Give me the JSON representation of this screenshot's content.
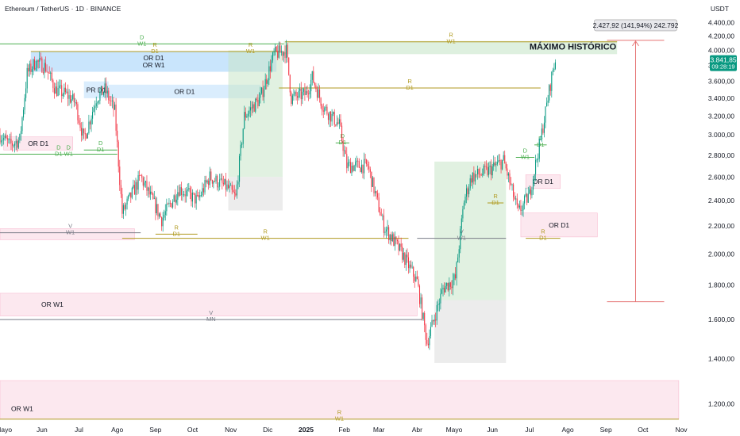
{
  "header": {
    "symbol": "Ethereum / TetherUS · 1D · BINANCE",
    "currency": "USDT"
  },
  "colors": {
    "up": "#089981",
    "down": "#f23645",
    "green_line": "#4caf50",
    "gold_line": "#b09a20",
    "grey_line": "#787b86",
    "red_measure": "#e57373",
    "price_badge": "#089981"
  },
  "chart_data": {
    "type": "candlestick",
    "symbol": "ETHUSDT",
    "timeframe": "1D",
    "exchange": "BINANCE",
    "x_range": [
      "2024-04-28",
      "2025-11-01"
    ],
    "y_range": [
      1130,
      4500
    ],
    "y_scale": "log",
    "y_ticks": [
      "1.200,00",
      "1.400,00",
      "1.600,00",
      "1.800,00",
      "2.000,00",
      "2.200,00",
      "2.400,00",
      "2.600,00",
      "2.800,00",
      "3.000,00",
      "3.200,00",
      "3.400,00",
      "3.600,00",
      "3.800,00",
      "4.000,00",
      "4.200,00",
      "4.400,00"
    ],
    "y_tick_values": [
      1200,
      1400,
      1600,
      1800,
      2000,
      2200,
      2400,
      2600,
      2800,
      3000,
      3200,
      3400,
      3600,
      3800,
      4000,
      4200,
      4400
    ],
    "x_ticks": [
      {
        "label": "Mayo",
        "date": "2024-05-01"
      },
      {
        "label": "Jun",
        "date": "2024-06-01"
      },
      {
        "label": "Jul",
        "date": "2024-07-01"
      },
      {
        "label": "Ago",
        "date": "2024-08-01"
      },
      {
        "label": "Sep",
        "date": "2024-09-01"
      },
      {
        "label": "Oct",
        "date": "2024-10-01"
      },
      {
        "label": "Nov",
        "date": "2024-11-01"
      },
      {
        "label": "Dic",
        "date": "2024-12-01"
      },
      {
        "label": "2025",
        "date": "2025-01-01"
      },
      {
        "label": "Feb",
        "date": "2025-02-01"
      },
      {
        "label": "Mar",
        "date": "2025-03-01"
      },
      {
        "label": "Abr",
        "date": "2025-04-01"
      },
      {
        "label": "Mayo",
        "date": "2025-05-01"
      },
      {
        "label": "Jun",
        "date": "2025-06-01"
      },
      {
        "label": "Jul",
        "date": "2025-07-01"
      },
      {
        "label": "Ago",
        "date": "2025-08-01"
      },
      {
        "label": "Sep",
        "date": "2025-09-01"
      },
      {
        "label": "Oct",
        "date": "2025-10-01"
      },
      {
        "label": "Nov",
        "date": "2025-11-01"
      }
    ],
    "price_path": [
      [
        "2024-04-28",
        3000
      ],
      [
        "2024-05-06",
        2900
      ],
      [
        "2024-05-14",
        2950
      ],
      [
        "2024-05-20",
        3700
      ],
      [
        "2024-05-27",
        3850
      ],
      [
        "2024-06-04",
        3780
      ],
      [
        "2024-06-12",
        3500
      ],
      [
        "2024-06-20",
        3450
      ],
      [
        "2024-06-28",
        3350
      ],
      [
        "2024-07-05",
        2950
      ],
      [
        "2024-07-15",
        3400
      ],
      [
        "2024-07-22",
        3500
      ],
      [
        "2024-07-30",
        3250
      ],
      [
        "2024-08-05",
        2300
      ],
      [
        "2024-08-20",
        2600
      ],
      [
        "2024-09-06",
        2250
      ],
      [
        "2024-09-20",
        2500
      ],
      [
        "2024-10-05",
        2400
      ],
      [
        "2024-10-15",
        2600
      ],
      [
        "2024-10-30",
        2500
      ],
      [
        "2024-11-05",
        2420
      ],
      [
        "2024-11-12",
        3200
      ],
      [
        "2024-11-25",
        3400
      ],
      [
        "2024-12-06",
        3950
      ],
      [
        "2024-12-16",
        4000
      ],
      [
        "2024-12-20",
        3400
      ],
      [
        "2025-01-01",
        3450
      ],
      [
        "2025-01-06",
        3650
      ],
      [
        "2025-01-15",
        3300
      ],
      [
        "2025-01-28",
        3100
      ],
      [
        "2025-02-03",
        2700
      ],
      [
        "2025-02-20",
        2700
      ],
      [
        "2025-03-05",
        2200
      ],
      [
        "2025-03-20",
        2000
      ],
      [
        "2025-04-01",
        1820
      ],
      [
        "2025-04-09",
        1480
      ],
      [
        "2025-04-22",
        1780
      ],
      [
        "2025-05-02",
        1840
      ],
      [
        "2025-05-09",
        2400
      ],
      [
        "2025-05-15",
        2600
      ],
      [
        "2025-05-28",
        2650
      ],
      [
        "2025-06-10",
        2750
      ],
      [
        "2025-06-22",
        2300
      ],
      [
        "2025-07-01",
        2450
      ],
      [
        "2025-07-10",
        2950
      ],
      [
        "2025-07-16",
        3400
      ],
      [
        "2025-07-20",
        3750
      ],
      [
        "2025-07-22",
        3841.85
      ]
    ],
    "last_price": "3.841,85",
    "countdown": "09:28:19",
    "measure": {
      "label": "2.427,92 (141,94%) 242.792",
      "from_price": 1700,
      "to_price": 4140,
      "x_date": "2025-09-25"
    },
    "annotations": [
      {
        "text": "MÁXIMO HISTÓRICO",
        "date": "2025-07-01",
        "price": 4000
      }
    ]
  },
  "zones": [
    {
      "label": "OR D1",
      "from": "2024-05-23",
      "to": "2024-12-08",
      "low": 3720,
      "high": 3980,
      "color": "blue"
    },
    {
      "label": "OR W1",
      "from": "2024-05-23",
      "to": "2024-12-08",
      "low": 3720,
      "high": 3980,
      "color": "blue"
    },
    {
      "label": "PR D1",
      "from": "2024-07-05",
      "to": "2024-07-25",
      "low": 3400,
      "high": 3600,
      "color": "blue"
    },
    {
      "label": "OR D1",
      "from": "2024-07-25",
      "to": "2024-11-25",
      "low": 3400,
      "high": 3560,
      "color": "blue"
    },
    {
      "label": "",
      "from": "2024-12-14",
      "to": "2025-09-10",
      "low": 3950,
      "high": 4130,
      "color": "green"
    },
    {
      "label": "OR D1",
      "from": "2024-05-01",
      "to": "2024-06-26",
      "low": 2850,
      "high": 2980,
      "color": "pink"
    },
    {
      "label": "",
      "from": "2024-04-28",
      "to": "2024-08-15",
      "low": 2100,
      "high": 2180,
      "color": "pink"
    },
    {
      "label": "OR W1",
      "from": "2024-04-28",
      "to": "2025-04-01",
      "low": 1620,
      "high": 1750,
      "color": "pink"
    },
    {
      "label": "OR W1",
      "from": "2024-04-28",
      "to": "2025-10-30",
      "low": 1140,
      "high": 1300,
      "color": "pink"
    },
    {
      "label": "OR D1",
      "from": "2025-06-28",
      "to": "2025-07-26",
      "low": 2500,
      "high": 2620,
      "color": "pink"
    },
    {
      "label": "OR D1",
      "from": "2025-06-24",
      "to": "2025-08-25",
      "low": 2120,
      "high": 2300,
      "color": "pink"
    },
    {
      "label": "",
      "from": "2024-10-30",
      "to": "2024-12-13",
      "low": 2600,
      "high": 4000,
      "color": "greenbox"
    },
    {
      "label": "",
      "from": "2024-10-30",
      "to": "2024-12-13",
      "low": 2320,
      "high": 2600,
      "color": "greybox"
    },
    {
      "label": "",
      "from": "2025-04-15",
      "to": "2025-06-12",
      "low": 1710,
      "high": 2740,
      "color": "greenbox"
    },
    {
      "label": "",
      "from": "2025-04-15",
      "to": "2025-06-12",
      "low": 1380,
      "high": 1710,
      "color": "greybox"
    }
  ],
  "levels": [
    {
      "from": "2024-04-28",
      "to": "2024-12-14",
      "price": 4090,
      "color": "green",
      "label": "D\nW1"
    },
    {
      "from": "2024-05-23",
      "to": "2024-12-10",
      "price": 3985,
      "color": "gold",
      "label": "R\nD1"
    },
    {
      "from": "2024-10-25",
      "to": "2024-12-10",
      "price": 3985,
      "color": "gold",
      "label": "R\nW1"
    },
    {
      "from": "2024-12-15",
      "to": "2025-09-10",
      "price": 4120,
      "color": "gold",
      "label": "R\nW1"
    },
    {
      "from": "2024-12-10",
      "to": "2025-07-10",
      "price": 3520,
      "color": "gold",
      "label": "R\nD1"
    },
    {
      "from": "2024-04-28",
      "to": "2024-08-01",
      "price": 2810,
      "color": "green",
      "label": "D\nD1"
    },
    {
      "from": "2024-06-10",
      "to": "2024-07-05",
      "price": 2810,
      "color": "green",
      "label": "D\nW1"
    },
    {
      "from": "2024-07-05",
      "to": "2024-08-01",
      "price": 2850,
      "color": "green",
      "label": "D\nD1"
    },
    {
      "from": "2024-04-28",
      "to": "2024-08-20",
      "price": 2150,
      "color": "grey",
      "label": "V\nW1"
    },
    {
      "from": "2024-08-05",
      "to": "2025-03-25",
      "price": 2110,
      "color": "gold",
      "label": "R\nW1"
    },
    {
      "from": "2024-09-01",
      "to": "2024-10-05",
      "price": 2140,
      "color": "gold",
      "label": "R\nD1"
    },
    {
      "from": "2024-04-28",
      "to": "2025-04-05",
      "price": 1600,
      "color": "grey",
      "label": "V\nMN"
    },
    {
      "from": "2024-04-28",
      "to": "2025-10-30",
      "price": 1140,
      "color": "gold",
      "label": "R\nW1"
    },
    {
      "from": "2025-04-01",
      "to": "2025-06-12",
      "price": 2110,
      "color": "grey",
      "label": "V\nW1"
    },
    {
      "from": "2025-06-28",
      "to": "2025-07-26",
      "price": 2110,
      "color": "gold",
      "label": "R\nD1"
    },
    {
      "from": "2025-01-25",
      "to": "2025-02-05",
      "price": 2920,
      "color": "green",
      "label": "D\nD1"
    },
    {
      "from": "2025-06-20",
      "to": "2025-07-05",
      "price": 2780,
      "color": "green",
      "label": "D\nW1"
    },
    {
      "from": "2025-07-05",
      "to": "2025-07-15",
      "price": 2900,
      "color": "green",
      "label": "D\nD1"
    },
    {
      "from": "2025-05-28",
      "to": "2025-06-10",
      "price": 2380,
      "color": "gold",
      "label": "R\nD1"
    }
  ]
}
